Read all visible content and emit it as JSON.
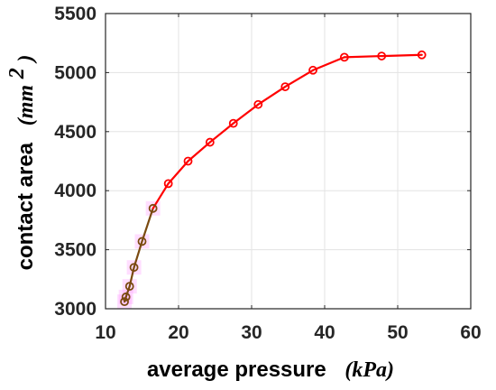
{
  "chart_data": {
    "type": "line",
    "title": "",
    "xlabel": "average pressure",
    "xunit": "(kPa)",
    "ylabel": "contact area",
    "yunit_base": "(mm",
    "yunit_exp": "2",
    "yunit_close": ")",
    "xlim": [
      10,
      60
    ],
    "ylim": [
      3000,
      5500
    ],
    "xticks": [
      10,
      20,
      30,
      40,
      50,
      60
    ],
    "yticks": [
      3000,
      3500,
      4000,
      4500,
      5000,
      5500
    ],
    "grid": true,
    "legend": "none",
    "series": [
      {
        "color": "#ff0000",
        "marker": "circle-open",
        "x": [
          12.6,
          12.8,
          13.3,
          13.9,
          15.0,
          16.5,
          18.6,
          21.3,
          24.3,
          27.5,
          30.9,
          34.6,
          38.4,
          42.7,
          47.8,
          53.3
        ],
        "y": [
          3060,
          3100,
          3190,
          3350,
          3570,
          3850,
          4060,
          4250,
          4410,
          4570,
          4730,
          4880,
          5020,
          5130,
          5140,
          5150
        ]
      }
    ],
    "highlight": {
      "color": "#ff88ff",
      "line_color": "#7a4a10",
      "count": 6
    }
  }
}
